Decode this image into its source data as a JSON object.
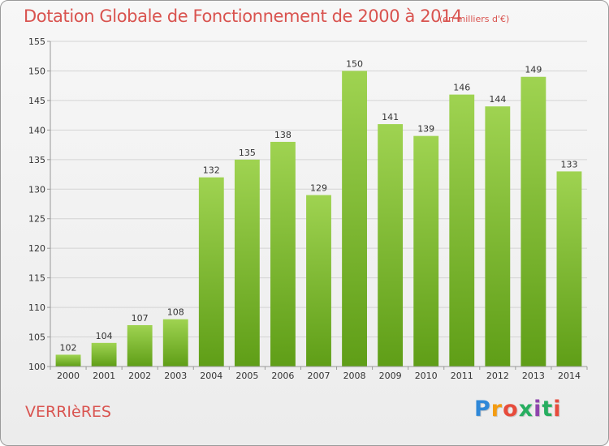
{
  "header": {
    "title": "Dotation Globale de Fonctionnement de 2000 à 2014",
    "subtitle": "(en milliers d'€)"
  },
  "footer": {
    "place": "VERRIèRES",
    "logo": "Proxiti"
  },
  "colors": {
    "title": "#d9534f",
    "bar_top": "#9fd351",
    "bar_bottom": "#5f9e17"
  },
  "chart_data": {
    "type": "bar",
    "title": "Dotation Globale de Fonctionnement de 2000 à 2014",
    "subtitle": "(en milliers d'€)",
    "xlabel": "",
    "ylabel": "",
    "categories": [
      "2000",
      "2001",
      "2002",
      "2003",
      "2004",
      "2005",
      "2006",
      "2007",
      "2008",
      "2009",
      "2010",
      "2011",
      "2012",
      "2013",
      "2014"
    ],
    "values": [
      102,
      104,
      107,
      108,
      132,
      135,
      138,
      129,
      150,
      141,
      139,
      146,
      144,
      149,
      133
    ],
    "ylim": [
      100,
      155
    ],
    "yticks": [
      100,
      105,
      110,
      115,
      120,
      125,
      130,
      135,
      140,
      145,
      150,
      155
    ],
    "grid": true,
    "legend": "none",
    "data_labels": true
  }
}
